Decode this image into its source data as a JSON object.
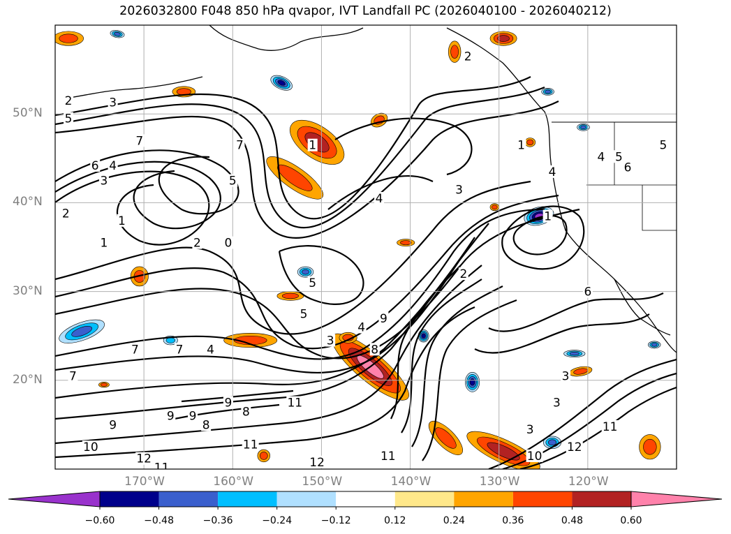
{
  "chart_data": {
    "type": "heatmap",
    "title": "2026032800 F048 850 hPa qvapor, IVT Landfall PC (2026040100 - 2026040212)",
    "xlabel": "",
    "ylabel": "",
    "lon_range": [
      -180,
      -110
    ],
    "lat_range": [
      10,
      60
    ],
    "lat_ticks": [
      {
        "value": 50,
        "label": "50°N"
      },
      {
        "value": 40,
        "label": "40°N"
      },
      {
        "value": 30,
        "label": "30°N"
      },
      {
        "value": 20,
        "label": "20°N"
      }
    ],
    "lon_ticks": [
      {
        "value": -170,
        "label": "170°W"
      },
      {
        "value": -160,
        "label": "160°W"
      },
      {
        "value": -150,
        "label": "150°W"
      },
      {
        "value": -140,
        "label": "140°W"
      },
      {
        "value": -130,
        "label": "130°W"
      },
      {
        "value": -120,
        "label": "120°W"
      }
    ],
    "grid": true,
    "colorbar": {
      "levels": [
        -0.6,
        -0.48,
        -0.36,
        -0.24,
        -0.12,
        0.12,
        0.24,
        0.36,
        0.48,
        0.6
      ],
      "tick_labels": [
        "−0.60",
        "−0.48",
        "−0.36",
        "−0.24",
        "−0.12",
        "0.12",
        "0.24",
        "0.36",
        "0.48",
        "0.60"
      ],
      "colors": [
        "#9932cc",
        "#00008b",
        "#3a5fcd",
        "#00bfff",
        "#b0e0ff",
        "#ffffff",
        "#ffe88a",
        "#ffa500",
        "#ff4500",
        "#b22222",
        "#ff82ab"
      ],
      "extend": "both"
    },
    "contour_labels": [
      {
        "lon": -178.5,
        "lat": 51.5,
        "text": "2"
      },
      {
        "lon": -173.5,
        "lat": 51.3,
        "text": "3"
      },
      {
        "lon": -178.5,
        "lat": 49.5,
        "text": "5"
      },
      {
        "lon": -170.5,
        "lat": 47.0,
        "text": "7"
      },
      {
        "lon": -175.5,
        "lat": 44.2,
        "text": "6"
      },
      {
        "lon": -173.5,
        "lat": 44.2,
        "text": "4"
      },
      {
        "lon": -174.5,
        "lat": 42.5,
        "text": "3"
      },
      {
        "lon": -178.8,
        "lat": 38.8,
        "text": "2"
      },
      {
        "lon": -172.5,
        "lat": 38.0,
        "text": "1"
      },
      {
        "lon": -174.5,
        "lat": 35.5,
        "text": "1"
      },
      {
        "lon": -159.2,
        "lat": 46.5,
        "text": "7"
      },
      {
        "lon": -160.0,
        "lat": 42.5,
        "text": "5"
      },
      {
        "lon": -164.0,
        "lat": 35.5,
        "text": "2"
      },
      {
        "lon": -160.5,
        "lat": 35.5,
        "text": "0"
      },
      {
        "lon": -151.0,
        "lat": 46.5,
        "text": "1"
      },
      {
        "lon": -143.5,
        "lat": 40.5,
        "text": "4"
      },
      {
        "lon": -134.5,
        "lat": 41.5,
        "text": "3"
      },
      {
        "lon": -134.0,
        "lat": 32.0,
        "text": "2"
      },
      {
        "lon": -151.0,
        "lat": 31.0,
        "text": "5"
      },
      {
        "lon": -152.0,
        "lat": 27.5,
        "text": "5"
      },
      {
        "lon": -145.5,
        "lat": 26.0,
        "text": "4"
      },
      {
        "lon": -144.0,
        "lat": 23.5,
        "text": "8"
      },
      {
        "lon": -143.0,
        "lat": 27.0,
        "text": "9"
      },
      {
        "lon": -149.0,
        "lat": 24.5,
        "text": "3"
      },
      {
        "lon": -171.0,
        "lat": 23.5,
        "text": "7"
      },
      {
        "lon": -162.5,
        "lat": 23.5,
        "text": "4"
      },
      {
        "lon": -166.0,
        "lat": 23.5,
        "text": "7"
      },
      {
        "lon": -178.0,
        "lat": 20.5,
        "text": "7"
      },
      {
        "lon": -167.0,
        "lat": 16.0,
        "text": "9"
      },
      {
        "lon": -164.5,
        "lat": 16.0,
        "text": "9"
      },
      {
        "lon": -173.5,
        "lat": 15.0,
        "text": "9"
      },
      {
        "lon": -160.5,
        "lat": 17.5,
        "text": "9"
      },
      {
        "lon": -158.5,
        "lat": 16.5,
        "text": "8"
      },
      {
        "lon": -163.0,
        "lat": 15.0,
        "text": "8"
      },
      {
        "lon": -153.0,
        "lat": 17.5,
        "text": "11"
      },
      {
        "lon": -176.0,
        "lat": 12.5,
        "text": "10"
      },
      {
        "lon": -170.0,
        "lat": 11.2,
        "text": "12"
      },
      {
        "lon": -168.0,
        "lat": 10.2,
        "text": "11"
      },
      {
        "lon": -158.0,
        "lat": 12.8,
        "text": "11"
      },
      {
        "lon": -150.5,
        "lat": 10.8,
        "text": "12"
      },
      {
        "lon": -124.5,
        "lat": 38.5,
        "text": "1"
      },
      {
        "lon": -120.0,
        "lat": 30.0,
        "text": "6"
      },
      {
        "lon": -122.5,
        "lat": 20.5,
        "text": "3"
      },
      {
        "lon": -123.5,
        "lat": 17.5,
        "text": "3"
      },
      {
        "lon": -126.5,
        "lat": 14.5,
        "text": "3"
      },
      {
        "lon": -126.0,
        "lat": 11.5,
        "text": "10"
      },
      {
        "lon": -121.5,
        "lat": 12.5,
        "text": "12"
      },
      {
        "lon": -117.5,
        "lat": 14.8,
        "text": "11"
      },
      {
        "lon": -127.5,
        "lat": 46.5,
        "text": "1"
      },
      {
        "lon": -133.5,
        "lat": 56.5,
        "text": "2"
      },
      {
        "lon": -118.5,
        "lat": 45.2,
        "text": "4"
      },
      {
        "lon": -116.5,
        "lat": 45.2,
        "text": "5"
      },
      {
        "lon": -115.5,
        "lat": 44.0,
        "text": "6"
      },
      {
        "lon": -111.5,
        "lat": 46.5,
        "text": "5"
      },
      {
        "lon": -124.0,
        "lat": 43.5,
        "text": "4"
      },
      {
        "lon": -142.5,
        "lat": 11.5,
        "text": "11"
      }
    ],
    "filled_features": [
      {
        "name": "qvapor-blob-1",
        "lon": -150.5,
        "lat": 46.8,
        "rx": 1.8,
        "ry": 3.5,
        "rot": -55,
        "levels": [
          0.24,
          0.36,
          0.48
        ]
      },
      {
        "name": "qvapor-blob-2",
        "lon": -153.0,
        "lat": 42.8,
        "rx": 1.2,
        "ry": 3.8,
        "rot": -55,
        "levels": [
          0.24,
          0.36
        ]
      },
      {
        "name": "qvapor-blob-3",
        "lon": -144.5,
        "lat": 21.5,
        "rx": 1.6,
        "ry": 5.5,
        "rot": -50,
        "levels": [
          0.24,
          0.36,
          0.48,
          0.6
        ]
      },
      {
        "name": "qvapor-blob-4",
        "lon": -129.5,
        "lat": 12.0,
        "rx": 1.3,
        "ry": 4.5,
        "rot": -65,
        "levels": [
          0.24,
          0.36,
          0.48
        ]
      },
      {
        "name": "qvapor-blob-5",
        "lon": -136.0,
        "lat": 13.5,
        "rx": 1.0,
        "ry": 2.5,
        "rot": -45,
        "levels": [
          0.24,
          0.36
        ]
      },
      {
        "name": "qvapor-blob-6",
        "lon": -170.5,
        "lat": 31.7,
        "rx": 1.0,
        "ry": 1.1,
        "rot": 0,
        "levels": [
          0.24,
          0.36
        ]
      },
      {
        "name": "qvapor-blob-7",
        "lon": -158.0,
        "lat": 24.5,
        "rx": 3.0,
        "ry": 0.8,
        "rot": 0,
        "levels": [
          0.24,
          0.36
        ]
      },
      {
        "name": "qvapor-blob-8",
        "lon": -153.5,
        "lat": 29.5,
        "rx": 1.5,
        "ry": 0.5,
        "rot": 0,
        "levels": [
          0.24,
          0.36
        ]
      },
      {
        "name": "qvapor-blob-9",
        "lon": -147.0,
        "lat": 24.8,
        "rx": 1.0,
        "ry": 0.6,
        "rot": 0,
        "levels": [
          0.24,
          0.36
        ]
      },
      {
        "name": "qvapor-blob-10",
        "lon": -143.5,
        "lat": 49.3,
        "rx": 1.0,
        "ry": 0.7,
        "rot": -30,
        "levels": [
          0.24,
          0.36
        ]
      },
      {
        "name": "qvapor-blob-11",
        "lon": -178.5,
        "lat": 58.5,
        "rx": 1.7,
        "ry": 0.8,
        "rot": 0,
        "levels": [
          0.24,
          0.36
        ]
      },
      {
        "name": "qvapor-blob-12",
        "lon": -129.5,
        "lat": 58.5,
        "rx": 1.5,
        "ry": 0.8,
        "rot": 0,
        "levels": [
          0.24,
          0.36,
          0.48
        ]
      },
      {
        "name": "qvapor-blob-13",
        "lon": -135.0,
        "lat": 57.0,
        "rx": 0.7,
        "ry": 1.2,
        "rot": 0,
        "levels": [
          0.24,
          0.36
        ]
      },
      {
        "name": "qvapor-blob-14",
        "lon": -113.0,
        "lat": 12.5,
        "rx": 1.2,
        "ry": 1.4,
        "rot": 0,
        "levels": [
          0.24,
          0.36
        ]
      },
      {
        "name": "qvapor-blob-15",
        "lon": -120.8,
        "lat": 21.0,
        "rx": 1.3,
        "ry": 0.5,
        "rot": -10,
        "levels": [
          0.24,
          0.36
        ]
      },
      {
        "name": "qvapor-blob-16",
        "lon": -140.5,
        "lat": 35.5,
        "rx": 1.0,
        "ry": 0.4,
        "rot": 0,
        "levels": [
          0.24,
          0.36
        ]
      },
      {
        "name": "qvapor-blob-17",
        "lon": -130.5,
        "lat": 39.5,
        "rx": 0.5,
        "ry": 0.4,
        "rot": 0,
        "levels": [
          0.24,
          0.36
        ]
      },
      {
        "name": "qvapor-blob-18",
        "lon": -165.5,
        "lat": 52.5,
        "rx": 1.3,
        "ry": 0.6,
        "rot": 0,
        "levels": [
          0.24,
          0.36
        ]
      },
      {
        "name": "qvapor-blob-19",
        "lon": -126.5,
        "lat": 46.8,
        "rx": 0.6,
        "ry": 0.5,
        "rot": 0,
        "levels": [
          0.24,
          0.36
        ]
      },
      {
        "name": "qvapor-blob-20",
        "lon": -174.5,
        "lat": 19.5,
        "rx": 0.6,
        "ry": 0.3,
        "rot": 0,
        "levels": [
          0.24,
          0.36
        ]
      },
      {
        "name": "qvapor-blob-21",
        "lon": -156.5,
        "lat": 11.5,
        "rx": 0.7,
        "ry": 0.7,
        "rot": 0,
        "levels": [
          0.24,
          0.36
        ]
      },
      {
        "name": "qvapor-neg-1",
        "lon": -125.5,
        "lat": 38.5,
        "rx": 1.7,
        "ry": 1.0,
        "rot": -15,
        "levels": [
          -0.12,
          -0.24,
          -0.36,
          -0.48,
          -0.6
        ]
      },
      {
        "name": "qvapor-neg-2",
        "lon": -154.5,
        "lat": 53.5,
        "rx": 1.3,
        "ry": 0.7,
        "rot": 25,
        "levels": [
          -0.12,
          -0.24,
          -0.36,
          -0.48
        ]
      },
      {
        "name": "qvapor-neg-3",
        "lon": -177.0,
        "lat": 25.5,
        "rx": 2.7,
        "ry": 1.0,
        "rot": -20,
        "levels": [
          -0.12,
          -0.24,
          -0.36
        ]
      },
      {
        "name": "qvapor-neg-4",
        "lon": -133.0,
        "lat": 19.8,
        "rx": 0.8,
        "ry": 1.1,
        "rot": 0,
        "levels": [
          -0.12,
          -0.24,
          -0.36,
          -0.48
        ]
      },
      {
        "name": "qvapor-neg-5",
        "lon": -138.5,
        "lat": 25.0,
        "rx": 0.6,
        "ry": 0.7,
        "rot": 0,
        "levels": [
          -0.12,
          -0.24,
          -0.36,
          -0.48
        ]
      },
      {
        "name": "qvapor-neg-6",
        "lon": -121.5,
        "lat": 23.0,
        "rx": 1.2,
        "ry": 0.4,
        "rot": 0,
        "levels": [
          -0.12,
          -0.24,
          -0.36
        ]
      },
      {
        "name": "qvapor-neg-7",
        "lon": -151.8,
        "lat": 32.2,
        "rx": 0.9,
        "ry": 0.6,
        "rot": 0,
        "levels": [
          -0.12,
          -0.24,
          -0.36
        ]
      },
      {
        "name": "qvapor-neg-8",
        "lon": -173.0,
        "lat": 59.0,
        "rx": 0.8,
        "ry": 0.4,
        "rot": 10,
        "levels": [
          -0.12,
          -0.24,
          -0.36
        ]
      },
      {
        "name": "qvapor-neg-9",
        "lon": -124.5,
        "lat": 52.5,
        "rx": 0.7,
        "ry": 0.4,
        "rot": 0,
        "levels": [
          -0.12,
          -0.24,
          -0.36
        ]
      },
      {
        "name": "qvapor-neg-10",
        "lon": -120.5,
        "lat": 48.5,
        "rx": 0.7,
        "ry": 0.4,
        "rot": 0,
        "levels": [
          -0.12,
          -0.24,
          -0.36
        ]
      },
      {
        "name": "qvapor-neg-11",
        "lon": -124.0,
        "lat": 13.0,
        "rx": 1.0,
        "ry": 0.7,
        "rot": 0,
        "levels": [
          -0.12,
          -0.24,
          -0.36
        ]
      },
      {
        "name": "qvapor-neg-12",
        "lon": -167.0,
        "lat": 24.5,
        "rx": 0.8,
        "ry": 0.5,
        "rot": 0,
        "levels": [
          -0.12,
          -0.24
        ]
      },
      {
        "name": "qvapor-neg-13",
        "lon": -112.5,
        "lat": 24.0,
        "rx": 0.7,
        "ry": 0.4,
        "rot": 0,
        "levels": [
          -0.12,
          -0.24,
          -0.36
        ]
      }
    ]
  }
}
